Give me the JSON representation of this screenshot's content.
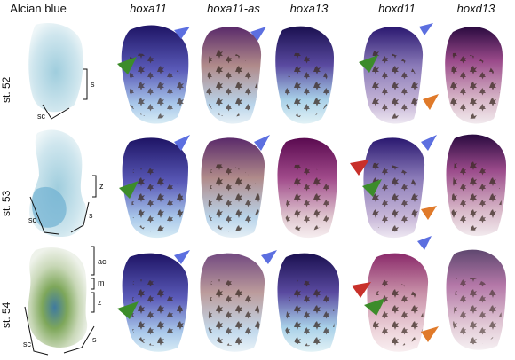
{
  "columns": [
    {
      "label": "Alcian blue",
      "italic": false,
      "cx": 0
    },
    {
      "label": "hoxa11",
      "italic": true
    },
    {
      "label": "hoxa11-as",
      "italic": true
    },
    {
      "label": "hoxa13",
      "italic": true
    },
    {
      "label": "hoxd11",
      "italic": true
    },
    {
      "label": "hoxd13",
      "italic": true
    }
  ],
  "rows": [
    {
      "label": "st. 52"
    },
    {
      "label": "st. 53"
    },
    {
      "label": "st. 54"
    }
  ],
  "region_labels": {
    "sc": "sc",
    "s": "s",
    "z": "z",
    "m": "m",
    "ac": "ac"
  },
  "colors": {
    "blue_arrow": "#5c6fe0",
    "green_arrow": "#3c8c2a",
    "orange_arrow": "#e07a2a",
    "red_arrow": "#c8302a",
    "alcian_blue": "#8fc3d6",
    "nbt_purple": "#3d2a86",
    "pigment": "#3a2a22"
  }
}
